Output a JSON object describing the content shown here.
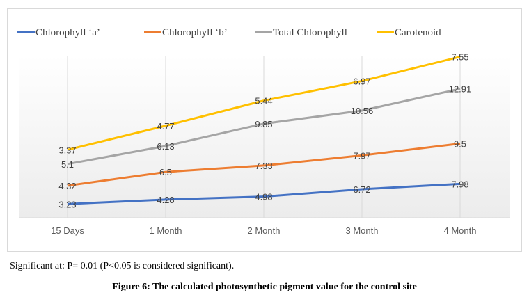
{
  "chart_data": {
    "type": "line",
    "stacked": true,
    "title": "",
    "xlabel": "",
    "ylabel": "",
    "categories": [
      "15 Days",
      "1 Month",
      "2 Month",
      "3 Month",
      "4 Month"
    ],
    "series": [
      {
        "name": "Chlorophyll ‘a’",
        "color": "#4472C4",
        "values": [
          3.23,
          4.28,
          4.98,
          6.72,
          7.98
        ]
      },
      {
        "name": "Chlorophyll ‘b’",
        "color": "#ED7D31",
        "values": [
          4.32,
          6.5,
          7.33,
          7.97,
          9.5
        ]
      },
      {
        "name": "Total Chlorophyll",
        "color": "#A5A5A5",
        "values": [
          5.1,
          6.13,
          9.85,
          10.56,
          12.91
        ]
      },
      {
        "name": "Carotenoid",
        "color": "#FFC000",
        "values": [
          3.37,
          4.77,
          5.44,
          6.97,
          7.55
        ]
      }
    ],
    "ylim": [
      0,
      40
    ],
    "y_axis_visible": false,
    "grid": "vertical",
    "legend": "top-left"
  },
  "note": "Significant at: P= 0.01 (P<0.05 is considered significant).",
  "caption": "Figure 6: The calculated photosynthetic pigment value for the control site"
}
